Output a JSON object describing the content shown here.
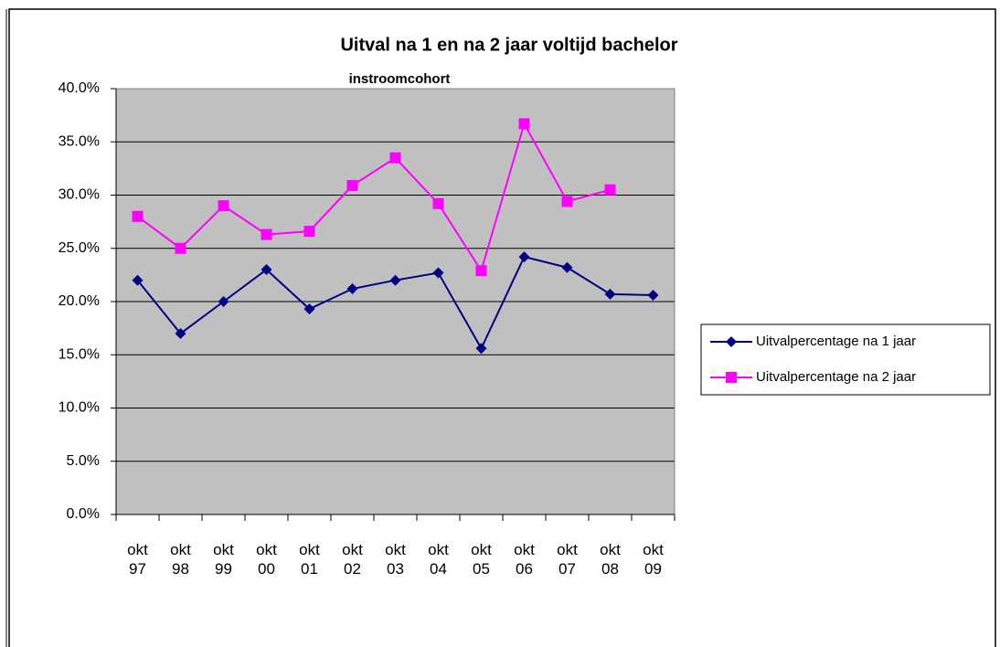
{
  "chart_data": {
    "type": "line",
    "title": "Uitval na 1 en na 2 jaar voltijd bachelor",
    "subtitle": "instroomcohort",
    "categories": [
      "okt 97",
      "okt 98",
      "okt 99",
      "okt 00",
      "okt 01",
      "okt 02",
      "okt 03",
      "okt 04",
      "okt 05",
      "okt 06",
      "okt 07",
      "okt 08",
      "okt 09"
    ],
    "series": [
      {
        "name": "Uitvalpercentage na 1 jaar",
        "color": "#000080",
        "marker": "diamond",
        "values": [
          22.0,
          17.0,
          20.0,
          23.0,
          19.3,
          21.2,
          22.0,
          22.7,
          15.6,
          24.2,
          23.2,
          20.7,
          20.6
        ]
      },
      {
        "name": "Uitvalpercentage na 2 jaar",
        "color": "#ff00ff",
        "marker": "square",
        "values": [
          28.0,
          25.0,
          29.0,
          26.3,
          26.6,
          30.9,
          33.5,
          29.2,
          22.9,
          36.7,
          29.4,
          30.5,
          null
        ]
      }
    ],
    "ylim": [
      0,
      40
    ],
    "yticks": [
      {
        "value": 0,
        "label": "0.0%"
      },
      {
        "value": 5,
        "label": "5.0%"
      },
      {
        "value": 10,
        "label": "10.0%"
      },
      {
        "value": 15,
        "label": "15.0%"
      },
      {
        "value": 20,
        "label": "20.0%"
      },
      {
        "value": 25,
        "label": "25.0%"
      },
      {
        "value": 30,
        "label": "30.0%"
      },
      {
        "value": 35,
        "label": "35.0%"
      },
      {
        "value": 40,
        "label": "40.0%"
      }
    ],
    "grid": true,
    "plot_background": "#c0c0c0",
    "legend": "right"
  }
}
